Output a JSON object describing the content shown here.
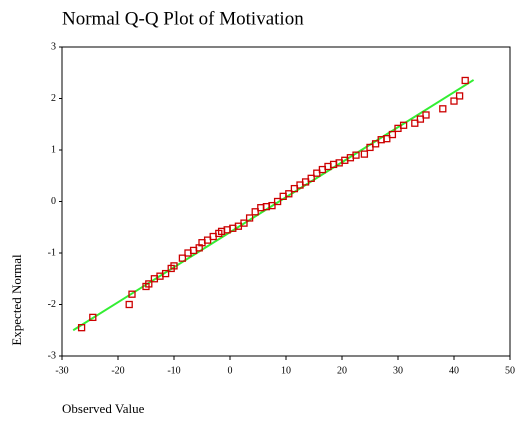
{
  "chart_data": {
    "type": "scatter",
    "title": "Normal Q-Q Plot of Motivation",
    "x_label": "Observed Value",
    "y_label": "Expected Normal",
    "xlim": [
      -30,
      50
    ],
    "xticks": [
      -30,
      -20,
      -10,
      0,
      10,
      20,
      30,
      40,
      50
    ],
    "ylim": [
      -3,
      3
    ],
    "yticks": [
      -3,
      -2,
      -1,
      0,
      1,
      2,
      3
    ],
    "color": "#cc0000",
    "x": [
      -26.5,
      -24.5,
      -18,
      -17.5,
      -15,
      -14.5,
      -13.5,
      -12.5,
      -11.5,
      -10.5,
      -10,
      -8.5,
      -7.5,
      -6.5,
      -5.5,
      -5,
      -4,
      -3,
      -2,
      -1.5,
      -0.5,
      0.5,
      1.5,
      2.5,
      3.5,
      4.5,
      5.5,
      6.5,
      7.5,
      8.5,
      9.5,
      10.5,
      11.5,
      12.5,
      13.5,
      14.5,
      15.5,
      16.5,
      17.5,
      18.5,
      19.5,
      20.5,
      21.5,
      22.5,
      24,
      25,
      26,
      27,
      28,
      29,
      30,
      31,
      33,
      34,
      35,
      38,
      40,
      41,
      42
    ],
    "values": [
      -2.45,
      -2.25,
      -2.0,
      -1.8,
      -1.65,
      -1.6,
      -1.5,
      -1.45,
      -1.4,
      -1.3,
      -1.25,
      -1.1,
      -1.0,
      -0.95,
      -0.9,
      -0.8,
      -0.75,
      -0.68,
      -0.62,
      -0.58,
      -0.55,
      -0.52,
      -0.48,
      -0.42,
      -0.32,
      -0.2,
      -0.12,
      -0.1,
      -0.08,
      0,
      0.1,
      0.15,
      0.25,
      0.32,
      0.38,
      0.45,
      0.55,
      0.62,
      0.68,
      0.72,
      0.75,
      0.8,
      0.85,
      0.9,
      0.92,
      1.05,
      1.12,
      1.2,
      1.22,
      1.3,
      1.42,
      1.48,
      1.52,
      1.6,
      1.68,
      1.8,
      1.95,
      2.05,
      2.35
    ],
    "reference_line": {
      "color": "#33ee33",
      "x": [
        -28,
        43.5
      ],
      "values": [
        -2.5,
        2.36
      ]
    }
  }
}
